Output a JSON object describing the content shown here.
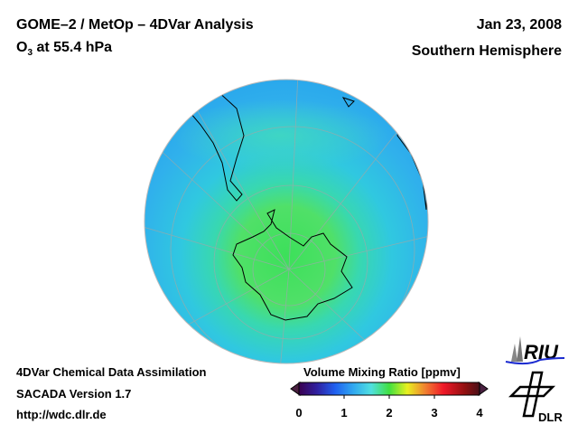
{
  "header": {
    "title": "GOME–2 / MetOp – 4DVar Analysis",
    "species": "O",
    "species_sub": "3",
    "level": " at 55.4 hPa",
    "date": "Jan 23, 2008",
    "region": "Southern Hemisphere"
  },
  "footer": {
    "line1": "4DVar Chemical Data Assimilation",
    "line2": "SACADA Version 1.7",
    "line3": "http://wdc.dlr.de"
  },
  "colorbar": {
    "title": "Volume Mixing Ratio [ppmv]",
    "ticks": [
      "0",
      "1",
      "2",
      "3",
      "4"
    ],
    "range": [
      0,
      4
    ],
    "colors": [
      "#3a0050",
      "#2040e0",
      "#20a0f0",
      "#40e0d0",
      "#40e040",
      "#f0f020",
      "#f08020",
      "#f01020",
      "#5a1010"
    ]
  },
  "logos": {
    "riu": "RIU",
    "dlr": "DLR"
  }
}
